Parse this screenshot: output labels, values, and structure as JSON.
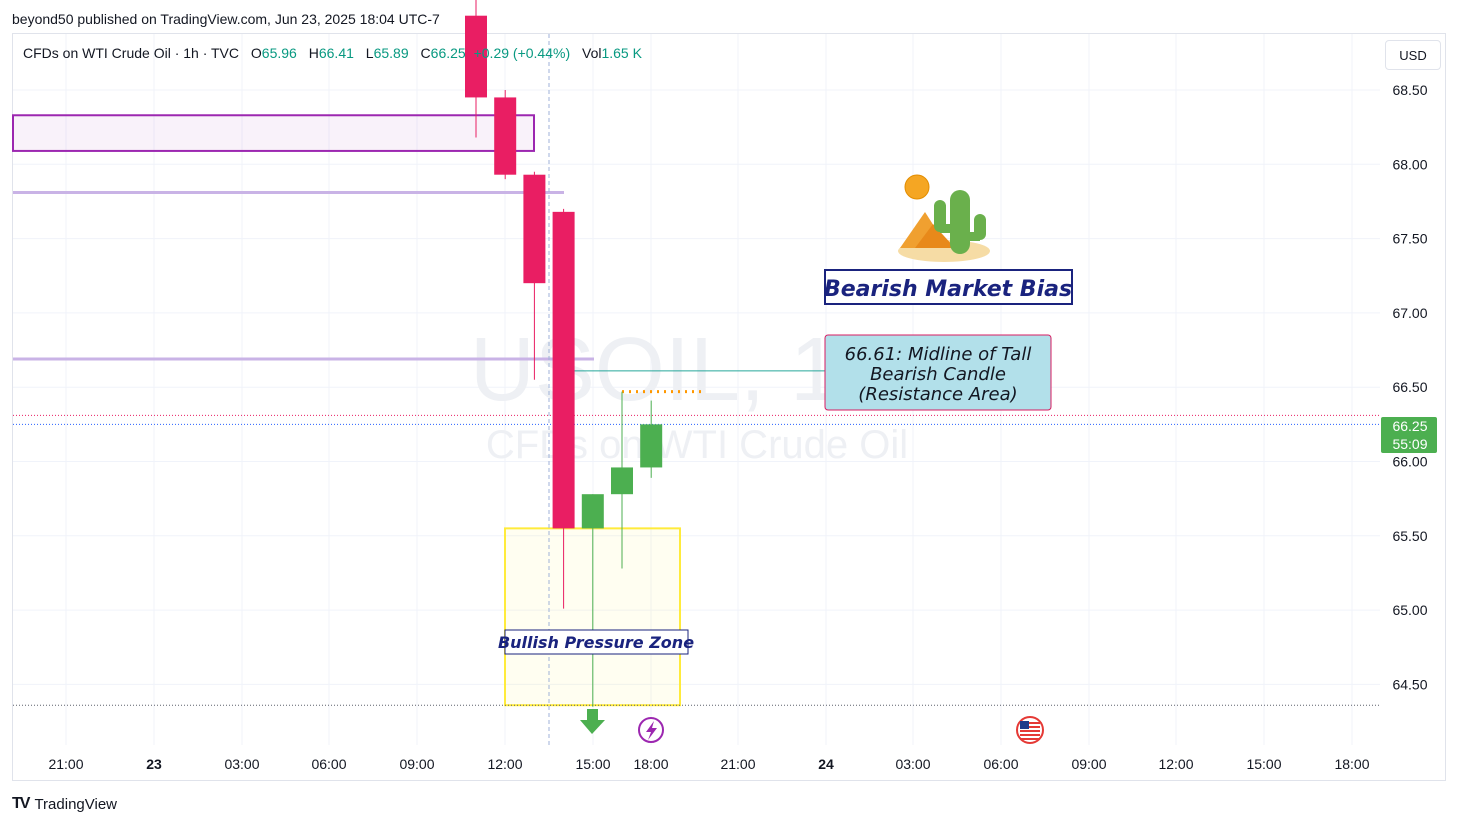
{
  "header": {
    "published_by": "beyond50 published on TradingView.com, Jun 23, 2025 18:04 UTC-7"
  },
  "legend": {
    "symbol_line": "CFDs on WTI Crude Oil · 1h · TVC",
    "open_label": "O",
    "open": "65.96",
    "high_label": "H",
    "high": "66.41",
    "low_label": "L",
    "low": "65.89",
    "close_label": "C",
    "close": "66.25",
    "change": "+0.29 (+0.44%)",
    "vol_label": "Vol",
    "vol": "1.65 K"
  },
  "currency_button": "USD",
  "footer": {
    "brand": "TradingView",
    "logo": "TV"
  },
  "colors": {
    "bull": "#4caf50",
    "bear": "#e91e63",
    "grid": "#f0f3fa",
    "purple_zone": "#9c27b0",
    "yellow_zone": "#ffeb3b",
    "annotation_border": "#1a237e",
    "resistance_box_fill": "#b2e0ea",
    "resistance_box_border": "#d81b60"
  },
  "watermark": {
    "symbol": "USOIL, 1h",
    "name": "CFDs on WTI Crude Oil"
  },
  "chart_data": {
    "type": "candlestick",
    "symbol": "USOIL",
    "interval": "1h",
    "ylim": [
      64.2,
      68.85
    ],
    "y_ticks": [
      "68.50",
      "68.00",
      "67.50",
      "67.00",
      "66.50",
      "66.00",
      "65.50",
      "65.00",
      "64.50"
    ],
    "x_ticks": [
      "21:00",
      "23",
      "03:00",
      "06:00",
      "09:00",
      "12:00",
      "15:00",
      "18:00",
      "21:00",
      "24",
      "03:00",
      "06:00",
      "09:00",
      "12:00",
      "15:00",
      "18:00"
    ],
    "x_tick_bold": [
      "23",
      "24"
    ],
    "candles": [
      {
        "time": "Jun 23 11:00",
        "open": 69.0,
        "high": 69.6,
        "low": 68.18,
        "close": 68.45
      },
      {
        "time": "Jun 23 12:00",
        "open": 68.45,
        "high": 68.5,
        "low": 67.9,
        "close": 67.93
      },
      {
        "time": "Jun 23 13:00",
        "open": 67.93,
        "high": 67.95,
        "low": 66.55,
        "close": 67.2
      },
      {
        "time": "Jun 23 14:00",
        "open": 67.68,
        "high": 67.7,
        "low": 65.01,
        "close": 65.55
      },
      {
        "time": "Jun 23 15:00",
        "open": 65.55,
        "high": 65.78,
        "low": 64.35,
        "close": 65.78
      },
      {
        "time": "Jun 23 16:00",
        "open": 65.78,
        "high": 66.47,
        "low": 65.28,
        "close": 65.96
      },
      {
        "time": "Jun 23 17:00",
        "open": 65.96,
        "high": 66.41,
        "low": 65.89,
        "close": 66.25
      }
    ],
    "last_price": "66.25",
    "countdown": "55:09",
    "zones": [
      {
        "name": "supply-zone",
        "from": 68.33,
        "to": 68.09
      },
      {
        "name": "bullish-pressure-zone",
        "from": 65.55,
        "to": 64.36,
        "label": "Bullish Pressure Zone"
      }
    ],
    "levels": [
      67.81,
      66.69,
      66.61,
      66.47,
      66.31,
      66.25,
      64.36
    ],
    "annotations": [
      {
        "text": "Bearish Market Bias"
      },
      {
        "price": 66.61,
        "lines": [
          "66.61: Midline of Tall",
          "Bearish Candle",
          "(Resistance Area)"
        ]
      }
    ],
    "events": [
      "dividend-arrow-icon",
      "earnings-bolt-icon",
      "us-flag-economic-event-icon"
    ]
  }
}
